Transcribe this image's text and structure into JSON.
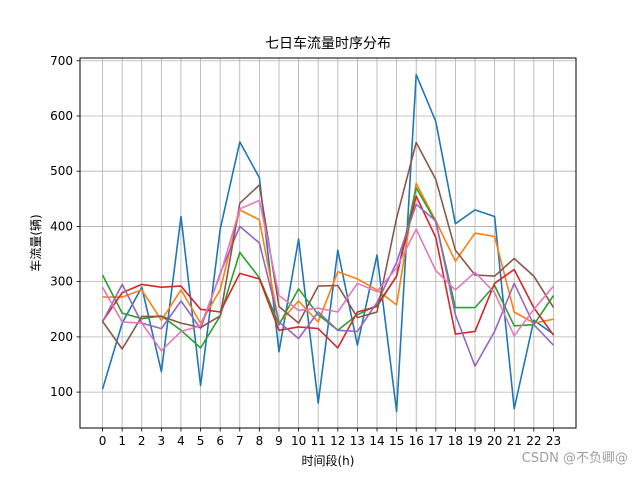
{
  "watermark": "CSDN @不负卿@",
  "chart_data": {
    "type": "line",
    "title": "七日车流量时序分布",
    "xlabel": "时间段(h)",
    "ylabel": "车流量(辆)",
    "x": [
      0,
      1,
      2,
      3,
      4,
      5,
      6,
      7,
      8,
      9,
      10,
      11,
      12,
      13,
      14,
      15,
      16,
      17,
      18,
      19,
      20,
      21,
      22,
      23
    ],
    "ylim": [
      35,
      705
    ],
    "yticks": [
      100,
      200,
      300,
      400,
      500,
      600,
      700
    ],
    "grid": true,
    "series": [
      {
        "color": "#1f77b4",
        "values": [
          105,
          225,
          290,
          137,
          418,
          112,
          395,
          553,
          488,
          173,
          377,
          80,
          357,
          185,
          348,
          65,
          675,
          590,
          405,
          430,
          418,
          70,
          230,
          205
        ]
      },
      {
        "color": "#ff7f0e",
        "values": [
          272,
          272,
          285,
          230,
          285,
          225,
          285,
          430,
          412,
          225,
          265,
          227,
          318,
          305,
          285,
          258,
          478,
          410,
          337,
          388,
          382,
          245,
          225,
          232
        ]
      },
      {
        "color": "#2ca02c",
        "values": [
          312,
          243,
          233,
          238,
          212,
          180,
          238,
          353,
          307,
          222,
          287,
          240,
          212,
          240,
          257,
          310,
          470,
          408,
          253,
          253,
          293,
          220,
          222,
          275
        ]
      },
      {
        "color": "#d62728",
        "values": [
          228,
          280,
          295,
          290,
          292,
          250,
          245,
          315,
          305,
          212,
          218,
          215,
          180,
          245,
          255,
          310,
          455,
          380,
          205,
          210,
          297,
          322,
          253,
          203
        ]
      },
      {
        "color": "#9467bd",
        "values": [
          227,
          295,
          225,
          215,
          265,
          215,
          315,
          400,
          370,
          227,
          197,
          245,
          212,
          210,
          262,
          335,
          440,
          410,
          240,
          147,
          210,
          297,
          222,
          185
        ]
      },
      {
        "color": "#8c564b",
        "values": [
          228,
          178,
          237,
          237,
          225,
          217,
          238,
          442,
          475,
          255,
          225,
          292,
          293,
          235,
          245,
          415,
          552,
          485,
          357,
          312,
          310,
          342,
          310,
          253
        ]
      },
      {
        "color": "#e377c2",
        "values": [
          290,
          227,
          225,
          175,
          210,
          220,
          312,
          432,
          447,
          275,
          248,
          252,
          245,
          297,
          282,
          325,
          395,
          320,
          285,
          317,
          280,
          202,
          250,
          292
        ]
      }
    ]
  }
}
